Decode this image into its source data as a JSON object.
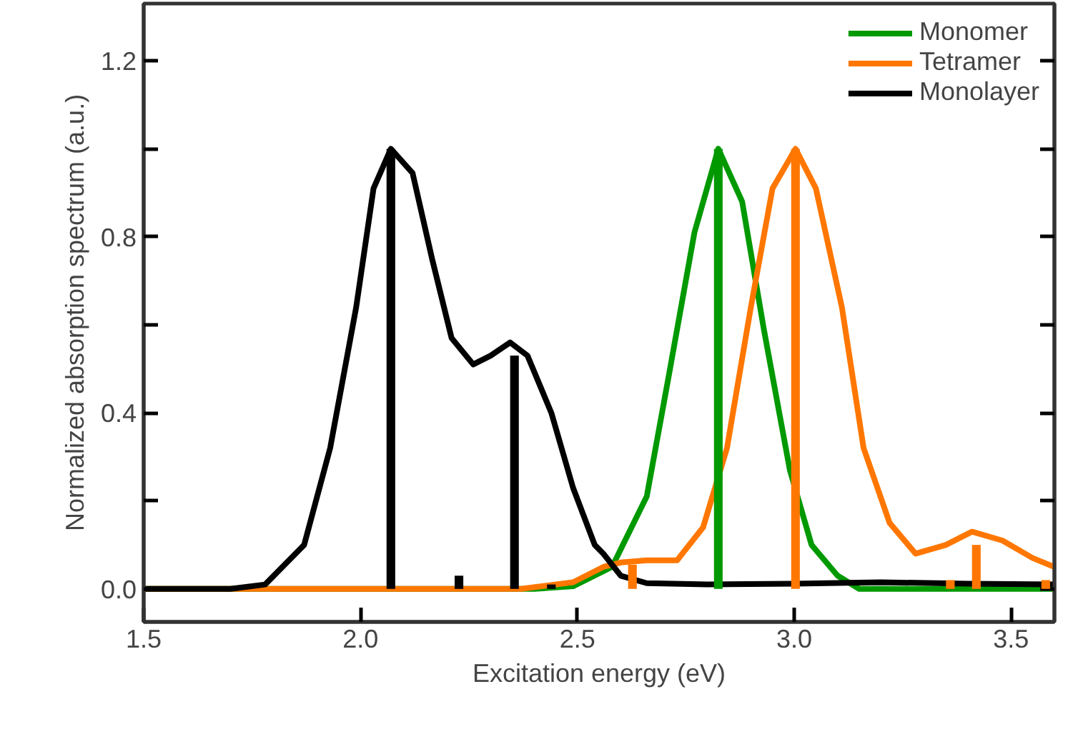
{
  "chart_data": {
    "type": "line",
    "xlabel": "Excitation energy (eV)",
    "ylabel": "Normalized absorption spectrum (a.u.)",
    "xlim": [
      1.5,
      3.6
    ],
    "xticks": [
      1.5,
      {
        "value": 2.0,
        "label": "2.0"
      },
      2.5,
      {
        "value": 3.0,
        "label": "3.0"
      },
      3.5
    ],
    "ylim": [
      -0.075,
      1.33
    ],
    "yticks": [
      {
        "value": 0.0,
        "label": "0.0"
      },
      {
        "value": 0.2,
        "label": null
      },
      0.4,
      {
        "value": 0.6,
        "label": null
      },
      0.8,
      {
        "value": 1.0,
        "label": null
      },
      1.2
    ],
    "grid": false,
    "legend": "top right",
    "marker": "none",
    "line_style": "solid",
    "series": [
      {
        "name": "Monomer",
        "color": "#009900",
        "x": [
          1.5,
          2.0,
          2.4,
          2.49,
          2.58,
          2.66,
          2.71,
          2.77,
          2.825,
          2.88,
          2.93,
          2.99,
          3.04,
          3.1,
          3.15,
          3.3,
          3.6
        ],
        "values": [
          0.0,
          0.0,
          0.0,
          0.006,
          0.05,
          0.21,
          0.48,
          0.81,
          1.0,
          0.88,
          0.59,
          0.27,
          0.1,
          0.03,
          0.0,
          0.0,
          0.0
        ]
      },
      {
        "name": "Tetramer",
        "color": "#ff7700",
        "x": [
          1.5,
          2.0,
          2.37,
          2.49,
          2.56,
          2.6,
          2.66,
          2.73,
          2.79,
          2.845,
          2.9,
          2.95,
          3.003,
          3.05,
          3.11,
          3.16,
          3.22,
          3.28,
          3.35,
          3.41,
          3.48,
          3.55,
          3.6
        ],
        "values": [
          0.0,
          0.0,
          0.0,
          0.015,
          0.05,
          0.06,
          0.065,
          0.065,
          0.14,
          0.32,
          0.64,
          0.91,
          1.0,
          0.91,
          0.64,
          0.32,
          0.15,
          0.08,
          0.1,
          0.13,
          0.11,
          0.07,
          0.05
        ]
      },
      {
        "name": "Monolayer",
        "color": "#000000",
        "x": [
          1.5,
          1.7,
          1.78,
          1.87,
          1.93,
          1.99,
          2.03,
          2.07,
          2.12,
          2.165,
          2.21,
          2.26,
          2.3,
          2.345,
          2.385,
          2.44,
          2.49,
          2.54,
          2.56,
          2.6,
          2.66,
          2.8,
          3.0,
          3.2,
          3.4,
          3.6
        ],
        "values": [
          0.0,
          0.0,
          0.01,
          0.1,
          0.32,
          0.64,
          0.91,
          1.0,
          0.945,
          0.75,
          0.57,
          0.51,
          0.53,
          0.56,
          0.53,
          0.4,
          0.23,
          0.1,
          0.08,
          0.03,
          0.013,
          0.01,
          0.012,
          0.015,
          0.012,
          0.01
        ]
      },
      {
        "type": "bar",
        "color": "#009900",
        "x": [
          2.825
        ],
        "values": [
          1.0
        ]
      },
      {
        "type": "bar",
        "color": "#ff7700",
        "x": [
          2.627,
          3.003,
          3.36,
          3.42,
          3.58
        ],
        "values": [
          0.055,
          1.0,
          0.02,
          0.1,
          0.02
        ]
      },
      {
        "type": "bar",
        "color": "#000000",
        "x": [
          2.07,
          2.227,
          2.355,
          2.44
        ],
        "values": [
          1.0,
          0.03,
          0.53,
          0.01
        ]
      }
    ]
  }
}
